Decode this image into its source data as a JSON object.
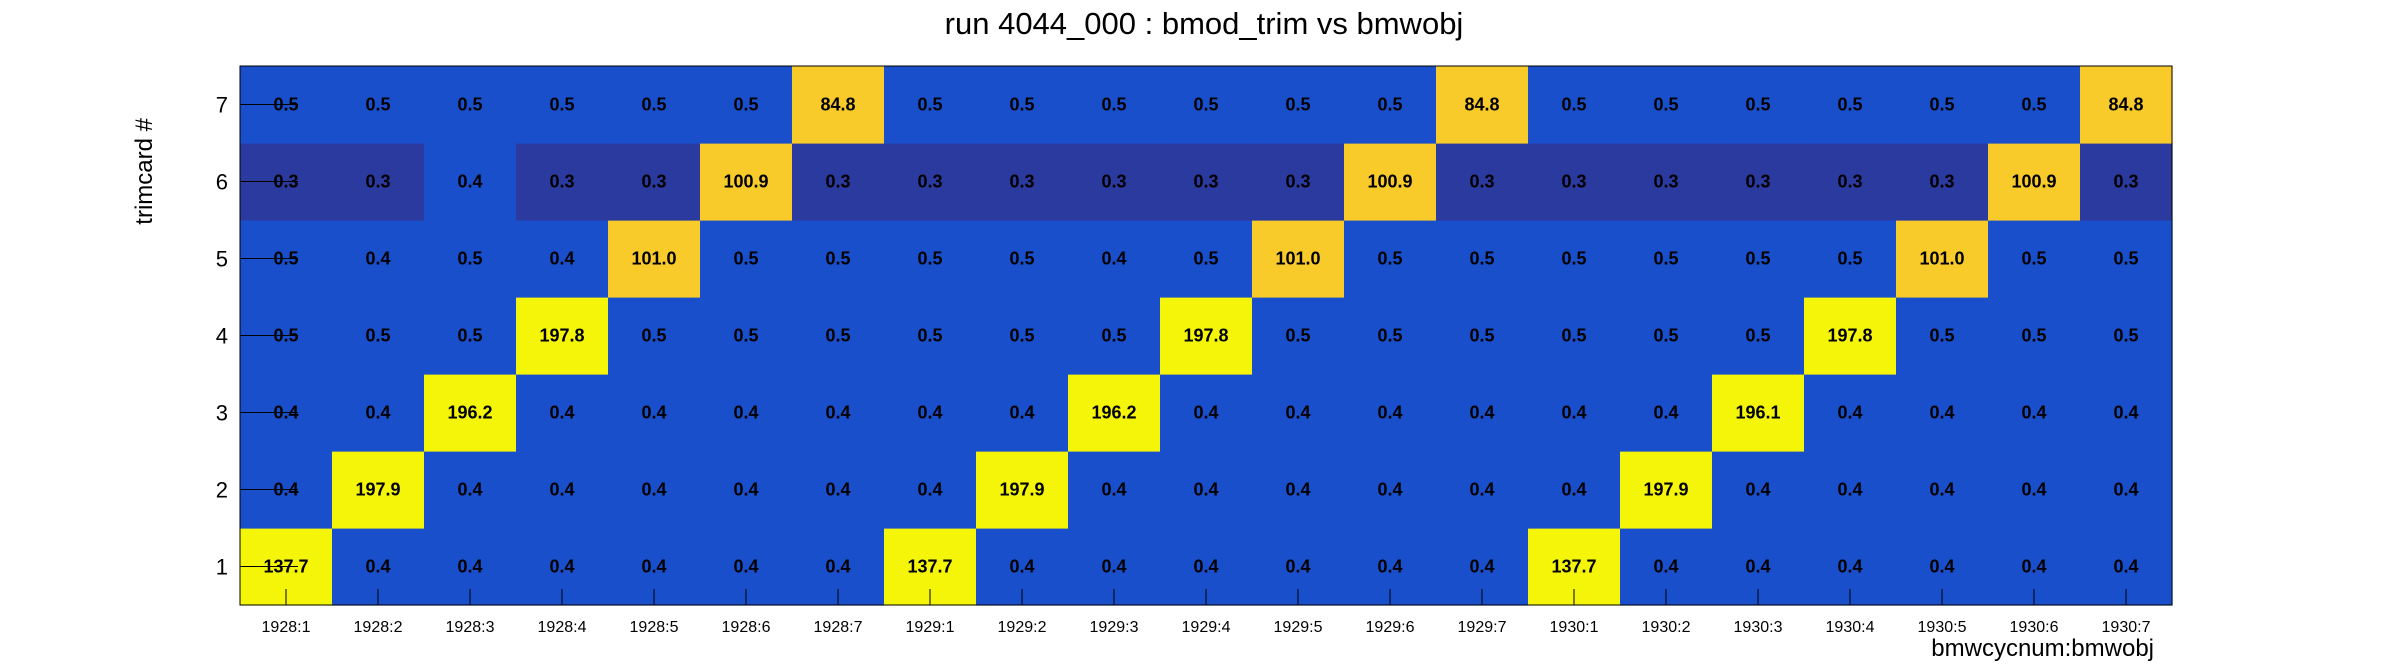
{
  "chart_data": {
    "type": "heatmap",
    "title": "run 4044_000 : bmod_trim vs bmwobj",
    "xlabel": "bmwcycnum:bmwobj",
    "ylabel": "trimcard #",
    "x_categories": [
      "1928:1",
      "1928:2",
      "1928:3",
      "1928:4",
      "1928:5",
      "1928:6",
      "1928:7",
      "1929:1",
      "1929:2",
      "1929:3",
      "1929:4",
      "1929:5",
      "1929:6",
      "1929:7",
      "1930:1",
      "1930:2",
      "1930:3",
      "1930:4",
      "1930:5",
      "1930:6",
      "1930:7"
    ],
    "y_categories": [
      "1",
      "2",
      "3",
      "4",
      "5",
      "6",
      "7"
    ],
    "values": [
      [
        137.7,
        0.4,
        0.4,
        0.4,
        0.4,
        0.4,
        0.4,
        137.7,
        0.4,
        0.4,
        0.4,
        0.4,
        0.4,
        0.4,
        137.7,
        0.4,
        0.4,
        0.4,
        0.4,
        0.4,
        0.4
      ],
      [
        0.4,
        197.9,
        0.4,
        0.4,
        0.4,
        0.4,
        0.4,
        0.4,
        197.9,
        0.4,
        0.4,
        0.4,
        0.4,
        0.4,
        0.4,
        197.9,
        0.4,
        0.4,
        0.4,
        0.4,
        0.4
      ],
      [
        0.4,
        0.4,
        196.2,
        0.4,
        0.4,
        0.4,
        0.4,
        0.4,
        0.4,
        196.2,
        0.4,
        0.4,
        0.4,
        0.4,
        0.4,
        0.4,
        196.1,
        0.4,
        0.4,
        0.4,
        0.4
      ],
      [
        0.5,
        0.5,
        0.5,
        197.8,
        0.5,
        0.5,
        0.5,
        0.5,
        0.5,
        0.5,
        197.8,
        0.5,
        0.5,
        0.5,
        0.5,
        0.5,
        0.5,
        197.8,
        0.5,
        0.5,
        0.5
      ],
      [
        0.5,
        0.4,
        0.5,
        0.4,
        101.0,
        0.5,
        0.5,
        0.5,
        0.5,
        0.4,
        0.5,
        101.0,
        0.5,
        0.5,
        0.5,
        0.5,
        0.5,
        0.5,
        101.0,
        0.5,
        0.5
      ],
      [
        0.3,
        0.3,
        0.4,
        0.3,
        0.3,
        100.9,
        0.3,
        0.3,
        0.3,
        0.3,
        0.3,
        0.3,
        100.9,
        0.3,
        0.3,
        0.3,
        0.3,
        0.3,
        0.3,
        100.9,
        0.3
      ],
      [
        0.5,
        0.5,
        0.5,
        0.5,
        0.5,
        0.5,
        84.8,
        0.5,
        0.5,
        0.5,
        0.5,
        0.5,
        0.5,
        84.8,
        0.5,
        0.5,
        0.5,
        0.5,
        0.5,
        0.5,
        84.8
      ]
    ],
    "colors": {
      "high": "#F5F50A",
      "high_mid": "#F8CA2A",
      "mid": "#1A4FCC",
      "low": "#2B3A9F"
    },
    "grid": false
  }
}
